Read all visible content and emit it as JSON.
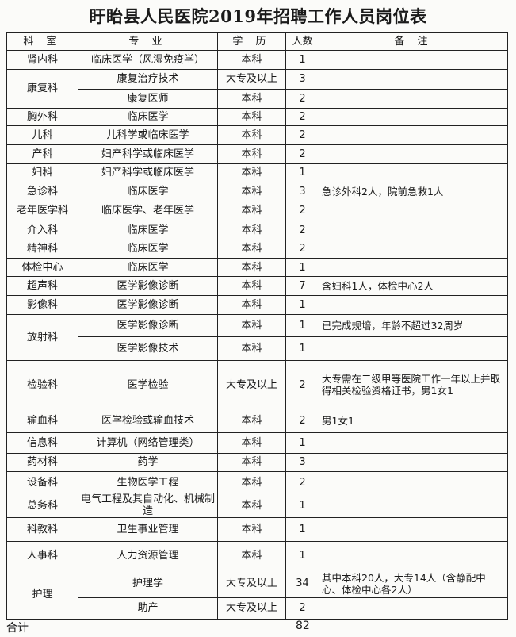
{
  "title": "盱眙县人民医院2019年招聘工作人员岗位表",
  "headers": {
    "dept": "科 室",
    "major": "专 业",
    "edu": "学 历",
    "count": "人数",
    "note": "备 注"
  },
  "departments": [
    {
      "name": "肾内科",
      "positions": [
        {
          "major": "临床医学（风湿免疫学）",
          "edu": "本科",
          "count": "1",
          "note": ""
        }
      ]
    },
    {
      "name": "康复科",
      "positions": [
        {
          "major": "康复治疗技术",
          "edu": "大专及以上",
          "count": "3",
          "note": ""
        },
        {
          "major": "康复医师",
          "edu": "本科",
          "count": "2",
          "note": ""
        }
      ]
    },
    {
      "name": "胸外科",
      "positions": [
        {
          "major": "临床医学",
          "edu": "本科",
          "count": "2",
          "note": ""
        }
      ]
    },
    {
      "name": "儿科",
      "positions": [
        {
          "major": "儿科学或临床医学",
          "edu": "本科",
          "count": "2",
          "note": ""
        }
      ]
    },
    {
      "name": "产科",
      "positions": [
        {
          "major": "妇产科学或临床医学",
          "edu": "本科",
          "count": "2",
          "note": ""
        }
      ]
    },
    {
      "name": "妇科",
      "positions": [
        {
          "major": "妇产科学或临床医学",
          "edu": "本科",
          "count": "1",
          "note": ""
        }
      ]
    },
    {
      "name": "急诊科",
      "positions": [
        {
          "major": "临床医学",
          "edu": "本科",
          "count": "3",
          "note": "急诊外科2人，院前急救1人"
        }
      ]
    },
    {
      "name": "老年医学科",
      "positions": [
        {
          "major": "临床医学、老年医学",
          "edu": "本科",
          "count": "2",
          "note": ""
        }
      ]
    },
    {
      "name": "介入科",
      "positions": [
        {
          "major": "临床医学",
          "edu": "本科",
          "count": "2",
          "note": ""
        }
      ]
    },
    {
      "name": "精神科",
      "positions": [
        {
          "major": "临床医学",
          "edu": "本科",
          "count": "2",
          "note": ""
        }
      ]
    },
    {
      "name": "体检中心",
      "positions": [
        {
          "major": "临床医学",
          "edu": "本科",
          "count": "1",
          "note": ""
        }
      ]
    },
    {
      "name": "超声科",
      "positions": [
        {
          "major": "医学影像诊断",
          "edu": "本科",
          "count": "7",
          "note": "含妇科1人，体检中心2人"
        }
      ]
    },
    {
      "name": "影像科",
      "positions": [
        {
          "major": "医学影像诊断",
          "edu": "本科",
          "count": "1",
          "note": ""
        }
      ]
    },
    {
      "name": "放射科",
      "positions": [
        {
          "major": "医学影像诊断",
          "edu": "本科",
          "count": "1",
          "note": "已完成规培，年龄不超过32周岁"
        },
        {
          "major": "医学影像技术",
          "edu": "本科",
          "count": "1",
          "note": ""
        }
      ]
    },
    {
      "name": "检验科",
      "positions": [
        {
          "major": "医学检验",
          "edu": "大专及以上",
          "count": "2",
          "note": "大专需在二级甲等医院工作一年以上并取得相关检验资格证书，男1女1"
        }
      ]
    },
    {
      "name": "输血科",
      "positions": [
        {
          "major": "医学检验或输血技术",
          "edu": "本科",
          "count": "2",
          "note": "男1女1"
        }
      ]
    },
    {
      "name": "信息科",
      "positions": [
        {
          "major": "计算机（网络管理类）",
          "edu": "本科",
          "count": "1",
          "note": ""
        }
      ]
    },
    {
      "name": "药材科",
      "positions": [
        {
          "major": "药学",
          "edu": "本科",
          "count": "3",
          "note": ""
        }
      ]
    },
    {
      "name": "设备科",
      "positions": [
        {
          "major": "生物医学工程",
          "edu": "本科",
          "count": "2",
          "note": ""
        }
      ]
    },
    {
      "name": "总务科",
      "positions": [
        {
          "major": "电气工程及其自动化、机械制造",
          "edu": "本科",
          "count": "1",
          "note": ""
        }
      ]
    },
    {
      "name": "科教科",
      "positions": [
        {
          "major": "卫生事业管理",
          "edu": "本科",
          "count": "1",
          "note": ""
        }
      ]
    },
    {
      "name": "人事科",
      "positions": [
        {
          "major": "人力资源管理",
          "edu": "本科",
          "count": "1",
          "note": ""
        }
      ]
    },
    {
      "name": "护理",
      "positions": [
        {
          "major": "护理学",
          "edu": "大专及以上",
          "count": "34",
          "note": "其中本科20人，大专14人（含静配中心、体检中心各2人）"
        },
        {
          "major": "助产",
          "edu": "大专及以上",
          "count": "2",
          "note": ""
        }
      ]
    }
  ],
  "footer": {
    "total_label": "合计",
    "total_value": "82"
  }
}
